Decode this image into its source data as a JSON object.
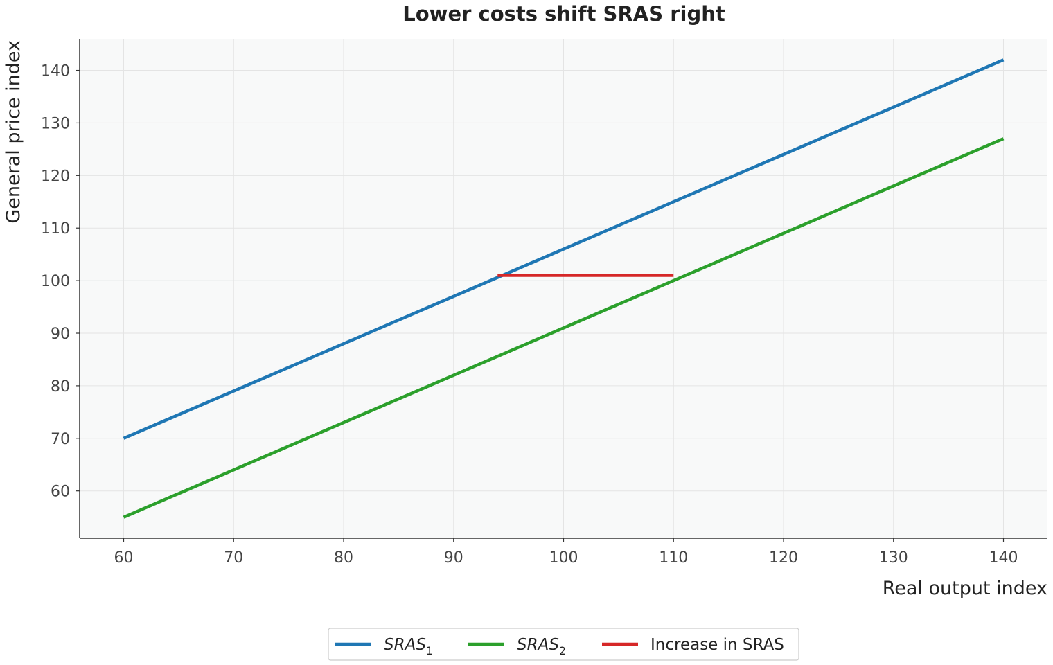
{
  "chart_data": {
    "type": "line",
    "title": "Lower costs shift SRAS right",
    "xlabel": "Real output index",
    "ylabel": "General price index",
    "xlim": [
      56,
      144
    ],
    "ylim": [
      51,
      146
    ],
    "x_ticks": [
      "60",
      "70",
      "80",
      "90",
      "100",
      "110",
      "120",
      "130",
      "140"
    ],
    "y_ticks": [
      "60",
      "70",
      "80",
      "90",
      "100",
      "110",
      "120",
      "130",
      "140"
    ],
    "grid": true,
    "legend_position": "bottom-center",
    "series": [
      {
        "name": "SRAS",
        "subscript": "1",
        "color": "#1f77b4",
        "x": [
          60,
          140
        ],
        "y": [
          70,
          142
        ]
      },
      {
        "name": "SRAS",
        "subscript": "2",
        "color": "#2ca02c",
        "x": [
          60,
          140
        ],
        "y": [
          55,
          127
        ]
      },
      {
        "name": "Increase in SRAS",
        "color": "#d62728",
        "x": [
          94,
          110
        ],
        "y": [
          101,
          101
        ]
      }
    ]
  }
}
